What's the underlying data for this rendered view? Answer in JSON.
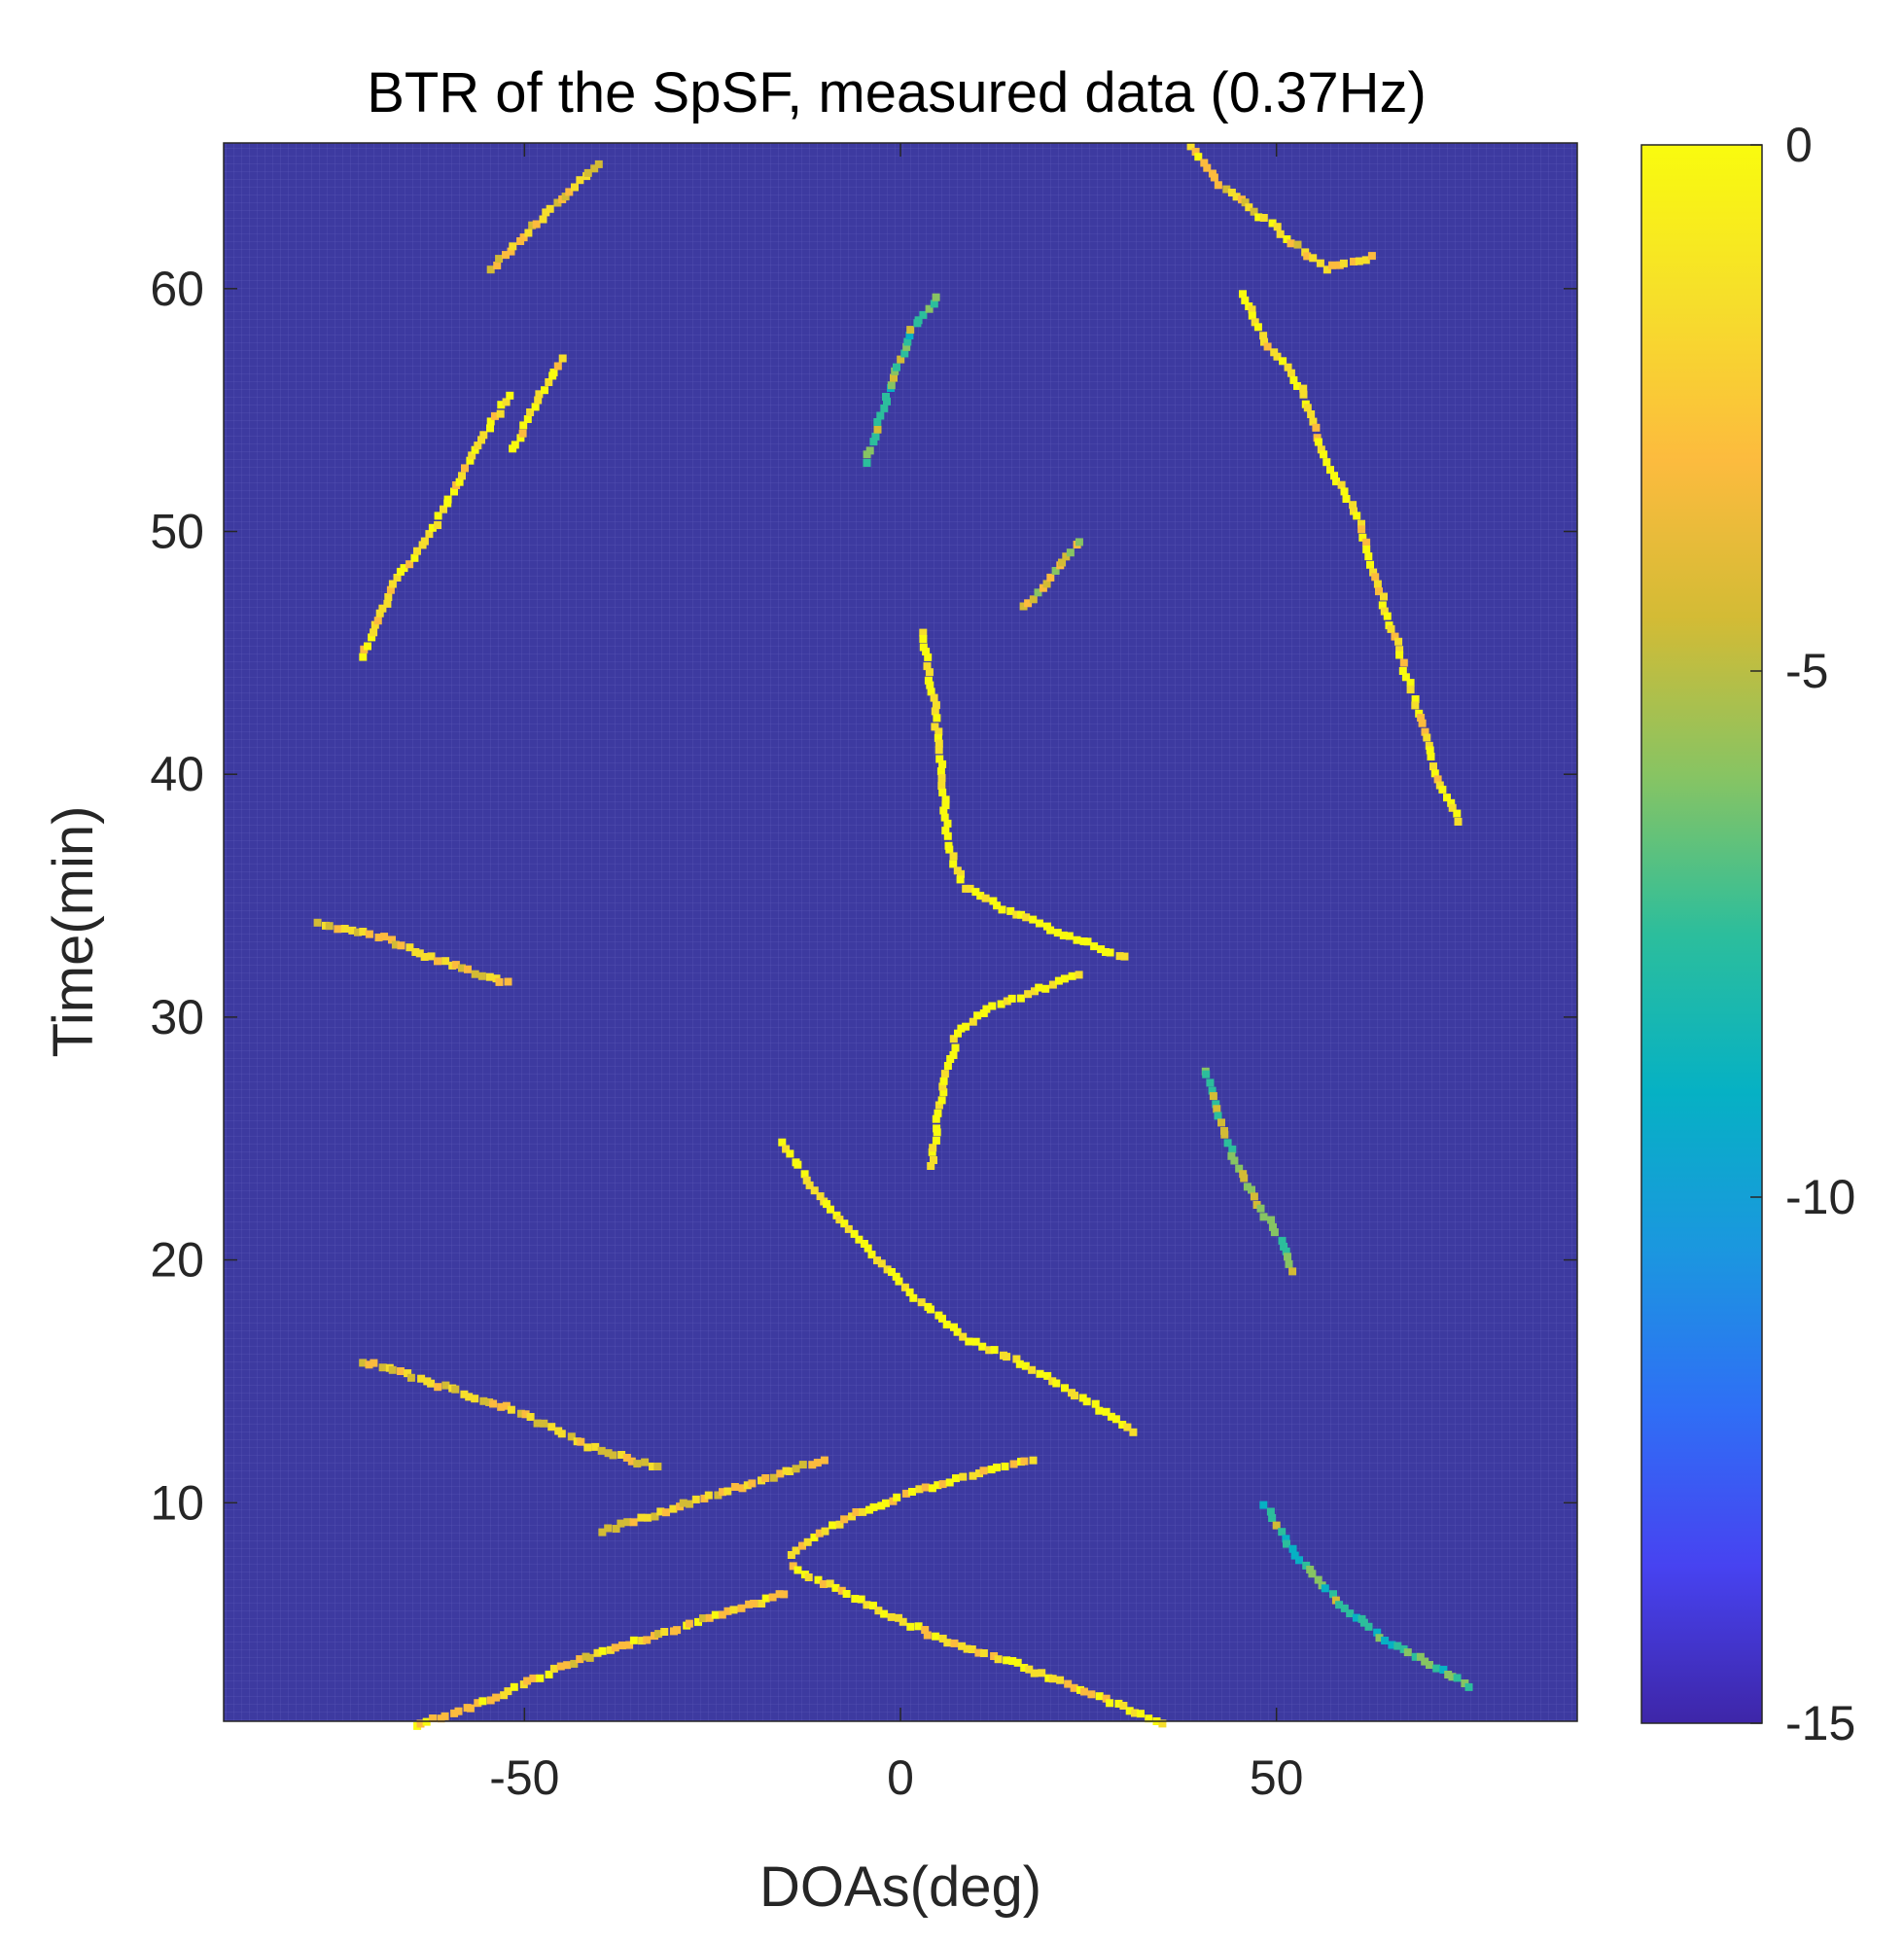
{
  "chart_data": {
    "type": "heatmap",
    "title": "BTR of the SpSF, measured data (0.37Hz)",
    "xlabel": "DOAs(deg)",
    "ylabel": "Time(min)",
    "xlim": [
      -90,
      90
    ],
    "ylim": [
      1,
      66
    ],
    "xticks": [
      -50,
      0,
      50
    ],
    "yticks": [
      10,
      20,
      30,
      40,
      50,
      60
    ],
    "colorbar": {
      "range": [
        -15,
        0
      ],
      "ticks": [
        0,
        -5,
        -10,
        -15
      ],
      "colormap": [
        "#3e26a8",
        "#4743f1",
        "#2f6ff5",
        "#1b97df",
        "#06b1c4",
        "#2cbe9c",
        "#87c463",
        "#d3bb35",
        "#fcbb3e",
        "#f6de2b",
        "#f9fb0e"
      ]
    },
    "background_value": -15,
    "tracks": [
      {
        "name": "track-center-upper",
        "value": 0,
        "points": [
          [
            2.5,
            46
          ],
          [
            4,
            43
          ],
          [
            5,
            40
          ],
          [
            6,
            37
          ],
          [
            8,
            35.5
          ],
          [
            14,
            34.5
          ],
          [
            22,
            33.5
          ],
          [
            30,
            32.5
          ]
        ]
      },
      {
        "name": "track-center-lower",
        "value": 0,
        "points": [
          [
            3.5,
            24
          ],
          [
            5,
            27
          ],
          [
            7,
            29.5
          ],
          [
            11,
            30.5
          ],
          [
            18,
            31.3
          ],
          [
            24,
            32
          ]
        ]
      },
      {
        "name": "track-main-diagonal",
        "value": 0,
        "points": [
          [
            -16,
            25
          ],
          [
            -12,
            23
          ],
          [
            -6,
            21
          ],
          [
            0,
            19
          ],
          [
            8,
            17
          ],
          [
            18,
            15.5
          ],
          [
            26,
            14
          ],
          [
            31,
            13
          ]
        ]
      },
      {
        "name": "track-lower-v-left",
        "value": -1,
        "points": [
          [
            -15,
            8
          ],
          [
            -8,
            9.5
          ],
          [
            0,
            10.5
          ],
          [
            8,
            11.2
          ],
          [
            18,
            12
          ]
        ]
      },
      {
        "name": "track-lower-diagonal",
        "value": -1,
        "points": [
          [
            -15,
            7.5
          ],
          [
            -5,
            6
          ],
          [
            5,
            4.5
          ],
          [
            15,
            3.5
          ],
          [
            25,
            2.3
          ],
          [
            35,
            1
          ]
        ]
      },
      {
        "name": "track-left-mid",
        "value": -3,
        "points": [
          [
            -72,
            16
          ],
          [
            -62,
            15
          ],
          [
            -52,
            14
          ],
          [
            -42,
            12.5
          ],
          [
            -32,
            11.5
          ]
        ]
      },
      {
        "name": "track-left-cross",
        "value": -3,
        "points": [
          [
            -40,
            9
          ],
          [
            -30,
            10
          ],
          [
            -20,
            11
          ],
          [
            -10,
            12
          ]
        ]
      },
      {
        "name": "track-lower-left",
        "value": -2,
        "points": [
          [
            -65,
            1
          ],
          [
            -55,
            2
          ],
          [
            -45,
            3.5
          ],
          [
            -35,
            4.5
          ],
          [
            -25,
            5.5
          ],
          [
            -15,
            6.5
          ]
        ]
      },
      {
        "name": "track-left-upper",
        "value": -1,
        "points": [
          [
            -72,
            45
          ],
          [
            -68,
            48
          ],
          [
            -63,
            50
          ],
          [
            -58,
            53
          ],
          [
            -52,
            56
          ]
        ]
      },
      {
        "name": "track-left-top",
        "value": -3,
        "points": [
          [
            -55,
            61
          ],
          [
            -50,
            62.5
          ],
          [
            -45,
            64
          ],
          [
            -40,
            65.5
          ]
        ]
      },
      {
        "name": "track-left-34",
        "value": -3,
        "points": [
          [
            -78,
            34
          ],
          [
            -70,
            33.5
          ],
          [
            -62,
            32.5
          ],
          [
            -52,
            31.5
          ]
        ]
      },
      {
        "name": "track-left-55",
        "value": -1,
        "points": [
          [
            -52,
            53.5
          ],
          [
            -48,
            56
          ],
          [
            -45,
            57.5
          ]
        ]
      },
      {
        "name": "track-right-arc",
        "value": -1,
        "points": [
          [
            45,
            60
          ],
          [
            48,
            58
          ],
          [
            53,
            56
          ],
          [
            56,
            53
          ],
          [
            60,
            51
          ],
          [
            63,
            48
          ],
          [
            66,
            45
          ],
          [
            68,
            43
          ],
          [
            71,
            40
          ],
          [
            74,
            38
          ]
        ]
      },
      {
        "name": "track-right-top",
        "value": -2,
        "points": [
          [
            38,
            66
          ],
          [
            42,
            64.5
          ],
          [
            48,
            63
          ],
          [
            56,
            61
          ],
          [
            63,
            61.5
          ]
        ]
      },
      {
        "name": "track-right-spray",
        "value": -6,
        "points": [
          [
            40,
            28
          ],
          [
            43,
            25
          ],
          [
            46,
            23
          ],
          [
            50,
            21
          ],
          [
            52,
            19.5
          ]
        ]
      },
      {
        "name": "track-center-top",
        "value": -7,
        "points": [
          [
            -5,
            53
          ],
          [
            -2,
            56
          ],
          [
            1,
            58.5
          ],
          [
            5,
            60
          ]
        ]
      },
      {
        "name": "track-right-bottom",
        "value": -7,
        "points": [
          [
            48,
            10
          ],
          [
            52,
            8
          ],
          [
            58,
            6
          ],
          [
            64,
            4.5
          ],
          [
            70,
            3.5
          ],
          [
            76,
            2.5
          ]
        ]
      },
      {
        "name": "track-center-47",
        "value": -4,
        "points": [
          [
            16,
            47
          ],
          [
            20,
            48.5
          ],
          [
            24,
            50
          ]
        ]
      }
    ]
  }
}
